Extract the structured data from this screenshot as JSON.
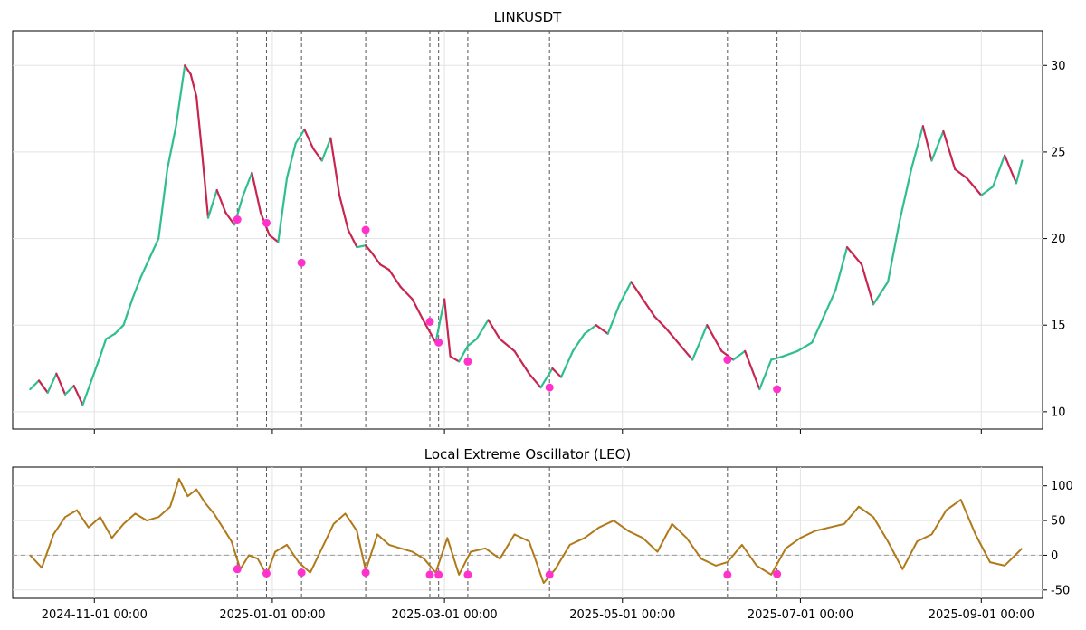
{
  "chart_data": [
    {
      "type": "line",
      "title": "LINKUSDT",
      "xlabel": "",
      "ylabel": "",
      "ylim": [
        9,
        32
      ],
      "y_ticks": [
        10,
        15,
        20,
        25,
        30
      ],
      "grid": true,
      "colors": {
        "up": "#2fbf8f",
        "down": "#c8254f",
        "marker": "#ff33cc",
        "event_line": "#555555"
      },
      "series": [
        {
          "x": [
            "2024-10-10",
            "2024-10-13",
            "2024-10-16",
            "2024-10-19",
            "2024-10-22",
            "2024-10-25",
            "2024-10-28",
            "2024-10-31",
            "2024-11-03",
            "2024-11-05",
            "2024-11-08",
            "2024-11-11",
            "2024-11-14",
            "2024-11-17",
            "2024-11-20",
            "2024-11-23",
            "2024-11-26",
            "2024-11-29",
            "2024-12-02",
            "2024-12-04",
            "2024-12-06",
            "2024-12-08",
            "2024-12-10",
            "2024-12-13",
            "2024-12-16",
            "2024-12-19",
            "2024-12-22",
            "2024-12-25",
            "2024-12-28",
            "2024-12-31",
            "2025-01-03",
            "2025-01-06",
            "2025-01-09",
            "2025-01-12",
            "2025-01-15",
            "2025-01-18",
            "2025-01-21",
            "2025-01-24",
            "2025-01-27",
            "2025-01-30",
            "2025-02-02",
            "2025-02-04",
            "2025-02-07",
            "2025-02-10",
            "2025-02-14",
            "2025-02-18",
            "2025-02-22",
            "2025-02-26",
            "2025-03-01",
            "2025-03-03",
            "2025-03-06",
            "2025-03-09",
            "2025-03-12",
            "2025-03-16",
            "2025-03-20",
            "2025-03-25",
            "2025-03-30",
            "2025-04-03",
            "2025-04-07",
            "2025-04-10",
            "2025-04-14",
            "2025-04-18",
            "2025-04-22",
            "2025-04-26",
            "2025-04-30",
            "2025-05-04",
            "2025-05-08",
            "2025-05-12",
            "2025-05-16",
            "2025-05-20",
            "2025-05-25",
            "2025-05-30",
            "2025-06-04",
            "2025-06-08",
            "2025-06-12",
            "2025-06-17",
            "2025-06-21",
            "2025-06-25",
            "2025-06-30",
            "2025-07-05",
            "2025-07-09",
            "2025-07-13",
            "2025-07-17",
            "2025-07-22",
            "2025-07-26",
            "2025-07-31",
            "2025-08-04",
            "2025-08-08",
            "2025-08-12",
            "2025-08-15",
            "2025-08-19",
            "2025-08-23",
            "2025-08-27",
            "2025-09-01",
            "2025-09-05",
            "2025-09-09",
            "2025-09-13",
            "2025-09-15"
          ],
          "values": [
            11.3,
            11.8,
            11.1,
            12.2,
            11.0,
            11.5,
            10.4,
            11.8,
            13.2,
            14.2,
            14.5,
            15.0,
            16.5,
            17.8,
            18.9,
            20.0,
            24.0,
            26.5,
            30.0,
            29.5,
            28.2,
            24.8,
            21.2,
            22.8,
            21.5,
            20.8,
            22.5,
            23.8,
            21.5,
            20.2,
            19.8,
            23.5,
            25.5,
            26.3,
            25.2,
            24.5,
            25.8,
            22.5,
            20.5,
            19.5,
            19.6,
            19.2,
            18.5,
            18.2,
            17.2,
            16.5,
            15.2,
            14.0,
            16.5,
            13.2,
            12.9,
            13.8,
            14.2,
            15.3,
            14.2,
            13.5,
            12.2,
            11.4,
            12.5,
            12.0,
            13.5,
            14.5,
            15.0,
            14.5,
            16.2,
            17.5,
            16.5,
            15.5,
            14.8,
            14.0,
            13.0,
            15.0,
            13.5,
            13.0,
            13.5,
            11.3,
            13.0,
            13.2,
            13.5,
            14.0,
            15.5,
            17.0,
            19.5,
            18.5,
            16.2,
            17.5,
            21.0,
            24.0,
            26.5,
            24.5,
            26.2,
            24.0,
            23.5,
            22.5,
            23.0,
            24.8,
            23.2,
            24.5
          ]
        }
      ],
      "events": {
        "x": [
          "2024-12-20",
          "2024-12-30",
          "2025-01-11",
          "2025-02-02",
          "2025-02-24",
          "2025-02-27",
          "2025-03-09",
          "2025-04-06",
          "2025-06-06",
          "2025-06-23"
        ],
        "values": [
          21.1,
          20.9,
          18.6,
          20.5,
          15.2,
          14.0,
          12.9,
          11.4,
          13.0,
          11.3
        ]
      },
      "x_ticks": [
        "2024-11-01 00:00",
        "2025-01-01 00:00",
        "2025-03-01 00:00",
        "2025-05-01 00:00",
        "2025-07-01 00:00",
        "2025-09-01 00:00"
      ]
    },
    {
      "type": "line",
      "title": "Local Extreme Oscillator (LEO)",
      "xlabel": "",
      "ylabel": "",
      "ylim": [
        -62,
        127
      ],
      "y_ticks": [
        -50,
        0,
        50,
        100
      ],
      "grid": true,
      "colors": {
        "line": "#b07a1a",
        "marker": "#ff33cc",
        "zero_line": "#999999",
        "event_line": "#555555"
      },
      "series": [
        {
          "x": [
            "2024-10-10",
            "2024-10-14",
            "2024-10-18",
            "2024-10-22",
            "2024-10-26",
            "2024-10-30",
            "2024-11-03",
            "2024-11-07",
            "2024-11-11",
            "2024-11-15",
            "2024-11-19",
            "2024-11-23",
            "2024-11-27",
            "2024-11-30",
            "2024-12-03",
            "2024-12-06",
            "2024-12-09",
            "2024-12-12",
            "2024-12-15",
            "2024-12-18",
            "2024-12-21",
            "2024-12-24",
            "2024-12-27",
            "2024-12-30",
            "2025-01-02",
            "2025-01-06",
            "2025-01-10",
            "2025-01-14",
            "2025-01-18",
            "2025-01-22",
            "2025-01-26",
            "2025-01-30",
            "2025-02-02",
            "2025-02-06",
            "2025-02-10",
            "2025-02-14",
            "2025-02-18",
            "2025-02-22",
            "2025-02-26",
            "2025-03-02",
            "2025-03-06",
            "2025-03-10",
            "2025-03-15",
            "2025-03-20",
            "2025-03-25",
            "2025-03-30",
            "2025-04-04",
            "2025-04-08",
            "2025-04-13",
            "2025-04-18",
            "2025-04-23",
            "2025-04-28",
            "2025-05-03",
            "2025-05-08",
            "2025-05-13",
            "2025-05-18",
            "2025-05-23",
            "2025-05-28",
            "2025-06-02",
            "2025-06-06",
            "2025-06-11",
            "2025-06-16",
            "2025-06-21",
            "2025-06-26",
            "2025-07-01",
            "2025-07-06",
            "2025-07-11",
            "2025-07-16",
            "2025-07-21",
            "2025-07-26",
            "2025-07-31",
            "2025-08-05",
            "2025-08-10",
            "2025-08-15",
            "2025-08-20",
            "2025-08-25",
            "2025-08-30",
            "2025-09-04",
            "2025-09-09",
            "2025-09-15"
          ],
          "values": [
            0,
            -18,
            30,
            55,
            65,
            40,
            55,
            25,
            45,
            60,
            50,
            55,
            70,
            110,
            85,
            95,
            75,
            60,
            40,
            20,
            -20,
            0,
            -5,
            -28,
            5,
            15,
            -10,
            -25,
            10,
            45,
            60,
            35,
            -22,
            30,
            15,
            10,
            5,
            -5,
            -25,
            25,
            -28,
            5,
            10,
            -5,
            30,
            20,
            -40,
            -20,
            15,
            25,
            40,
            50,
            35,
            25,
            5,
            45,
            25,
            -5,
            -15,
            -10,
            15,
            -15,
            -28,
            10,
            25,
            35,
            40,
            45,
            70,
            55,
            20,
            -20,
            20,
            30,
            65,
            80,
            30,
            -10,
            -15,
            10
          ]
        }
      ],
      "events": {
        "x": [
          "2024-12-20",
          "2024-12-30",
          "2025-01-11",
          "2025-02-02",
          "2025-02-24",
          "2025-02-27",
          "2025-03-09",
          "2025-04-06",
          "2025-06-06",
          "2025-06-23"
        ],
        "values": [
          -20,
          -26,
          -25,
          -25,
          -28,
          -28,
          -28,
          -28,
          -28,
          -27
        ]
      },
      "x_ticks": [
        "2024-11-01 00:00",
        "2025-01-01 00:00",
        "2025-03-01 00:00",
        "2025-05-01 00:00",
        "2025-07-01 00:00",
        "2025-09-01 00:00"
      ]
    }
  ]
}
